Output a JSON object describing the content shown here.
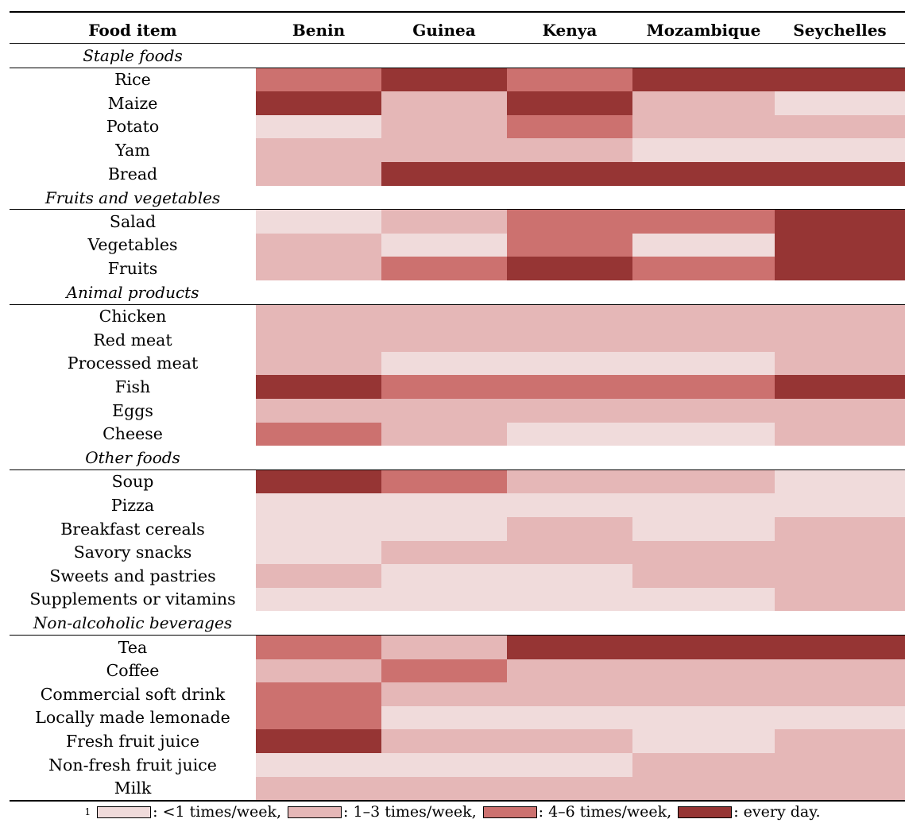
{
  "chart_data": {
    "type": "heatmap",
    "row_header": "Food item",
    "columns": [
      "Benin",
      "Guinea",
      "Kenya",
      "Mozambique",
      "Seychelles"
    ],
    "levels": [
      {
        "code": 1,
        "label": "<1 times/week",
        "color": "#F0DBDB"
      },
      {
        "code": 2,
        "label": "1–3 times/week",
        "color": "#E5B7B7"
      },
      {
        "code": 3,
        "label": "4–6 times/week",
        "color": "#CC716F"
      },
      {
        "code": 4,
        "label": "every day",
        "color": "#963534"
      }
    ],
    "groups": [
      {
        "name": "Staple foods",
        "rows": [
          {
            "item": "Rice",
            "values": [
              3,
              4,
              3,
              4,
              4
            ]
          },
          {
            "item": "Maize",
            "values": [
              4,
              2,
              4,
              2,
              1
            ]
          },
          {
            "item": "Potato",
            "values": [
              1,
              2,
              3,
              2,
              2
            ]
          },
          {
            "item": "Yam",
            "values": [
              2,
              2,
              2,
              1,
              1
            ]
          },
          {
            "item": "Bread",
            "values": [
              2,
              4,
              4,
              4,
              4
            ]
          }
        ]
      },
      {
        "name": "Fruits and vegetables",
        "rows": [
          {
            "item": "Salad",
            "values": [
              1,
              2,
              3,
              3,
              4
            ]
          },
          {
            "item": "Vegetables",
            "values": [
              2,
              1,
              3,
              1,
              4
            ]
          },
          {
            "item": "Fruits",
            "values": [
              2,
              3,
              4,
              3,
              4
            ]
          }
        ]
      },
      {
        "name": "Animal products",
        "rows": [
          {
            "item": "Chicken",
            "values": [
              2,
              2,
              2,
              2,
              2
            ]
          },
          {
            "item": "Red meat",
            "values": [
              2,
              2,
              2,
              2,
              2
            ]
          },
          {
            "item": "Processed meat",
            "values": [
              2,
              1,
              1,
              1,
              2
            ]
          },
          {
            "item": "Fish",
            "values": [
              4,
              3,
              3,
              3,
              4
            ]
          },
          {
            "item": "Eggs",
            "values": [
              2,
              2,
              2,
              2,
              2
            ]
          },
          {
            "item": "Cheese",
            "values": [
              3,
              2,
              1,
              1,
              2
            ]
          }
        ]
      },
      {
        "name": "Other foods",
        "rows": [
          {
            "item": "Soup",
            "values": [
              4,
              3,
              2,
              2,
              1
            ]
          },
          {
            "item": "Pizza",
            "values": [
              1,
              1,
              1,
              1,
              1
            ]
          },
          {
            "item": "Breakfast cereals",
            "values": [
              1,
              1,
              2,
              1,
              2
            ]
          },
          {
            "item": "Savory snacks",
            "values": [
              1,
              2,
              2,
              2,
              2
            ]
          },
          {
            "item": "Sweets and pastries",
            "values": [
              2,
              1,
              1,
              2,
              2
            ]
          },
          {
            "item": "Supplements or vitamins",
            "values": [
              1,
              1,
              1,
              1,
              2
            ]
          }
        ]
      },
      {
        "name": "Non-alcoholic beverages",
        "rows": [
          {
            "item": "Tea",
            "values": [
              3,
              2,
              4,
              4,
              4
            ]
          },
          {
            "item": "Coffee",
            "values": [
              2,
              3,
              2,
              2,
              2
            ]
          },
          {
            "item": "Commercial soft drink",
            "values": [
              3,
              2,
              2,
              2,
              2
            ]
          },
          {
            "item": "Locally made lemonade",
            "values": [
              3,
              1,
              1,
              1,
              1
            ]
          },
          {
            "item": "Fresh fruit juice",
            "values": [
              4,
              2,
              2,
              1,
              2
            ]
          },
          {
            "item": "Non-fresh fruit juice",
            "values": [
              1,
              1,
              1,
              2,
              2
            ]
          },
          {
            "item": "Milk",
            "values": [
              2,
              2,
              2,
              2,
              2
            ]
          }
        ]
      }
    ]
  },
  "footnote": {
    "marker": "1",
    "items": [
      ": <1 times/week,",
      ": 1–3 times/week,",
      ": 4–6 times/week,",
      ": every day."
    ]
  }
}
